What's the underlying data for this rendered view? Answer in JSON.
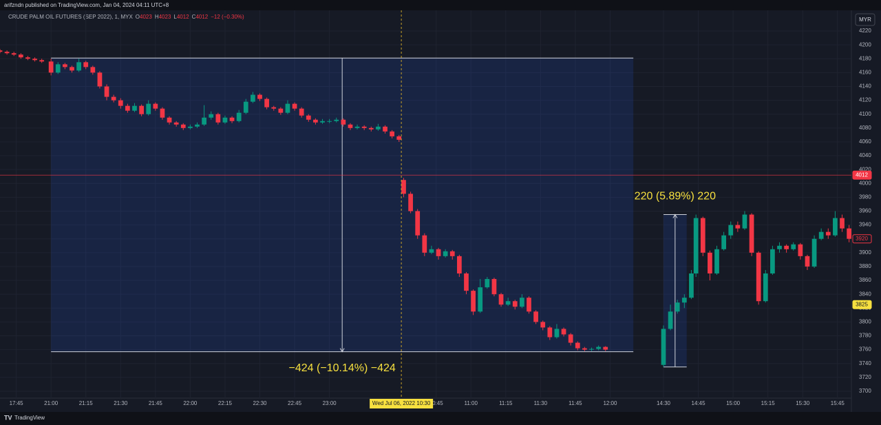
{
  "header": {
    "published": "arifzndn published on TradingView.com, Jan 04, 2024 04:11 UTC+8"
  },
  "legend": {
    "symbol": "CRUDE PALM OIL FUTURES (SEP 2022), 1, MYX",
    "ohlc": [
      {
        "key": "O",
        "value": 4023
      },
      {
        "key": "H",
        "value": 4023
      },
      {
        "key": "L",
        "value": 4012
      },
      {
        "key": "C",
        "value": 4012
      }
    ],
    "change": "−12 (−0.30%)"
  },
  "currency": "MYR",
  "brand": "TradingView",
  "chart_data": {
    "type": "candlestick",
    "up_color": "#089981",
    "down_color": "#f23645",
    "xlim": [
      -22,
      345
    ],
    "ylim": [
      3690,
      4230
    ],
    "yticks": [
      3700,
      3720,
      3740,
      3760,
      3780,
      3800,
      3820,
      3840,
      3860,
      3880,
      3900,
      3920,
      3940,
      3960,
      3980,
      4000,
      4020,
      4040,
      4060,
      4080,
      4100,
      4120,
      4140,
      4160,
      4180,
      4200,
      4220
    ],
    "xticks": [
      {
        "value": -15,
        "label": "17:45"
      },
      {
        "value": 0,
        "label": "21:00"
      },
      {
        "value": 15,
        "label": "21:15"
      },
      {
        "value": 30,
        "label": "21:30"
      },
      {
        "value": 45,
        "label": "21:45"
      },
      {
        "value": 60,
        "label": "22:00"
      },
      {
        "value": 75,
        "label": "22:15"
      },
      {
        "value": 90,
        "label": "22:30"
      },
      {
        "value": 105,
        "label": "22:45"
      },
      {
        "value": 120,
        "label": "23:00"
      },
      {
        "value": 166,
        "label": "10:45"
      },
      {
        "value": 181,
        "label": "11:00"
      },
      {
        "value": 196,
        "label": "11:15"
      },
      {
        "value": 211,
        "label": "11:30"
      },
      {
        "value": 226,
        "label": "11:45"
      },
      {
        "value": 241,
        "label": "12:00"
      },
      {
        "value": 264,
        "label": "14:30"
      },
      {
        "value": 279,
        "label": "14:45"
      },
      {
        "value": 294,
        "label": "15:00"
      },
      {
        "value": 309,
        "label": "15:15"
      },
      {
        "value": 324,
        "label": "15:30"
      },
      {
        "value": 339,
        "label": "15:45"
      }
    ],
    "grid": true,
    "x": [
      -22,
      -19,
      -16,
      -13,
      -10,
      -7,
      -4,
      0,
      3,
      6,
      9,
      12,
      15,
      18,
      21,
      24,
      27,
      30,
      33,
      36,
      39,
      42,
      45,
      48,
      51,
      54,
      57,
      60,
      63,
      66,
      69,
      72,
      75,
      78,
      81,
      84,
      87,
      90,
      93,
      96,
      99,
      102,
      105,
      108,
      111,
      114,
      117,
      120,
      123,
      126,
      129,
      132,
      135,
      138,
      141,
      144,
      147,
      150,
      152,
      155,
      158,
      161,
      164,
      167,
      170,
      173,
      176,
      179,
      182,
      185,
      188,
      191,
      194,
      197,
      200,
      203,
      206,
      209,
      212,
      215,
      218,
      221,
      224,
      227,
      230,
      233,
      236,
      239,
      264,
      267,
      270,
      273,
      276,
      278,
      281,
      284,
      287,
      290,
      293,
      296,
      299,
      302,
      305,
      308,
      311,
      314,
      317,
      320,
      323,
      326,
      329,
      332,
      335,
      338,
      341,
      344
    ],
    "open": [
      4192,
      4190,
      4188,
      4186,
      4182,
      4180,
      4178,
      4176,
      4160,
      4172,
      4168,
      4163,
      4175,
      4168,
      4160,
      4140,
      4125,
      4120,
      4112,
      4105,
      4112,
      4100,
      4115,
      4108,
      4095,
      4088,
      4085,
      4080,
      4082,
      4085,
      4095,
      4100,
      4088,
      4095,
      4090,
      4102,
      4118,
      4128,
      4122,
      4110,
      4108,
      4102,
      4115,
      4108,
      4098,
      4092,
      4088,
      4090,
      4090,
      4092,
      4085,
      4080,
      4082,
      4080,
      4078,
      4082,
      4075,
      4068,
      4005,
      3985,
      3960,
      3925,
      3900,
      3905,
      3895,
      3902,
      3895,
      3870,
      3845,
      3815,
      3850,
      3862,
      3840,
      3825,
      3830,
      3822,
      3835,
      3815,
      3800,
      3792,
      3778,
      3790,
      3782,
      3770,
      3762,
      3760,
      3761,
      3764,
      3738,
      3790,
      3815,
      3828,
      3835,
      3870,
      3950,
      3900,
      3870,
      3905,
      3925,
      3940,
      3935,
      3955,
      3900,
      3830,
      3870,
      3905,
      3910,
      3905,
      3912,
      3895,
      3880,
      3920,
      3930,
      3925,
      3950,
      3935
    ],
    "high": [
      4194,
      4192,
      4190,
      4188,
      4184,
      4182,
      4180,
      4180,
      4175,
      4174,
      4170,
      4180,
      4177,
      4170,
      4162,
      4143,
      4128,
      4123,
      4115,
      4116,
      4114,
      4120,
      4117,
      4110,
      4097,
      4090,
      4087,
      4085,
      4088,
      4113,
      4104,
      4102,
      4098,
      4097,
      4106,
      4122,
      4132,
      4130,
      4124,
      4112,
      4110,
      4120,
      4117,
      4110,
      4100,
      4094,
      4093,
      4093,
      4095,
      4094,
      4087,
      4085,
      4084,
      4082,
      4086,
      4084,
      4077,
      4070,
      4008,
      3988,
      3963,
      3928,
      3910,
      3907,
      3905,
      3904,
      3897,
      3872,
      3847,
      3862,
      3865,
      3864,
      3842,
      3835,
      3832,
      3840,
      3837,
      3817,
      3802,
      3794,
      3797,
      3792,
      3784,
      3772,
      3764,
      3763,
      3766,
      3765,
      3795,
      3825,
      3832,
      3840,
      3875,
      3955,
      3952,
      3903,
      3910,
      3930,
      3945,
      3945,
      3960,
      3957,
      3902,
      3875,
      3910,
      3915,
      3912,
      3915,
      3914,
      3897,
      3925,
      3935,
      3935,
      3960,
      3955,
      3940
    ],
    "low": [
      4188,
      4186,
      4184,
      4180,
      4178,
      4176,
      4174,
      4156,
      4158,
      4165,
      4160,
      4161,
      4165,
      4157,
      4137,
      4120,
      4117,
      4108,
      4102,
      4103,
      4097,
      4098,
      4105,
      4092,
      4085,
      4082,
      4077,
      4078,
      4080,
      4083,
      4092,
      4085,
      4086,
      4087,
      4088,
      4100,
      4116,
      4119,
      4107,
      4105,
      4099,
      4100,
      4105,
      4095,
      4089,
      4085,
      4086,
      4087,
      4088,
      4082,
      4077,
      4078,
      4077,
      4075,
      4076,
      4072,
      4065,
      4060,
      3980,
      3957,
      3920,
      3895,
      3898,
      3890,
      3893,
      3890,
      3865,
      3840,
      3810,
      3813,
      3848,
      3837,
      3822,
      3823,
      3818,
      3820,
      3812,
      3797,
      3788,
      3774,
      3776,
      3779,
      3766,
      3759,
      3758,
      3758,
      3759,
      3758,
      3735,
      3788,
      3812,
      3820,
      3833,
      3865,
      3895,
      3860,
      3868,
      3903,
      3920,
      3930,
      3933,
      3895,
      3825,
      3828,
      3868,
      3900,
      3900,
      3903,
      3890,
      3875,
      3878,
      3918,
      3920,
      3923,
      3930,
      3915
    ],
    "close": [
      4190,
      4188,
      4186,
      4182,
      4180,
      4178,
      4176,
      4160,
      4172,
      4168,
      4163,
      4175,
      4168,
      4160,
      4140,
      4125,
      4120,
      4112,
      4105,
      4112,
      4100,
      4115,
      4108,
      4095,
      4088,
      4085,
      4080,
      4082,
      4085,
      4095,
      4100,
      4088,
      4095,
      4090,
      4102,
      4118,
      4128,
      4122,
      4110,
      4108,
      4102,
      4115,
      4108,
      4098,
      4092,
      4088,
      4090,
      4090,
      4092,
      4085,
      4080,
      4082,
      4080,
      4078,
      4082,
      4075,
      4068,
      4063,
      3985,
      3960,
      3925,
      3900,
      3905,
      3895,
      3902,
      3895,
      3870,
      3845,
      3815,
      3850,
      3862,
      3840,
      3825,
      3830,
      3822,
      3835,
      3815,
      3800,
      3792,
      3778,
      3790,
      3782,
      3770,
      3762,
      3760,
      3761,
      3764,
      3760,
      3790,
      3815,
      3828,
      3835,
      3870,
      3950,
      3900,
      3870,
      3905,
      3925,
      3940,
      3935,
      3955,
      3900,
      3830,
      3870,
      3905,
      3910,
      3905,
      3912,
      3895,
      3880,
      3920,
      3930,
      3925,
      3950,
      3935,
      3920
    ],
    "measures": [
      {
        "x_start": 0,
        "x_end": 251,
        "from": 4181,
        "to": 3757,
        "label": "−424 (−10.14%) −424"
      },
      {
        "x_start": 264,
        "x_end": 274,
        "from": 3735,
        "to": 3955,
        "label": "220 (5.89%) 220"
      }
    ],
    "crosshair": {
      "x": 151,
      "label": "Wed Jul 06, 2022   10:30"
    },
    "price_labels": [
      {
        "value": 4012,
        "style": "filled",
        "color": "#f23645"
      },
      {
        "value": 3920,
        "style": "outline",
        "color": "#f23645"
      },
      {
        "value": 3825,
        "style": "filled",
        "color": "#f7e03f"
      }
    ]
  }
}
